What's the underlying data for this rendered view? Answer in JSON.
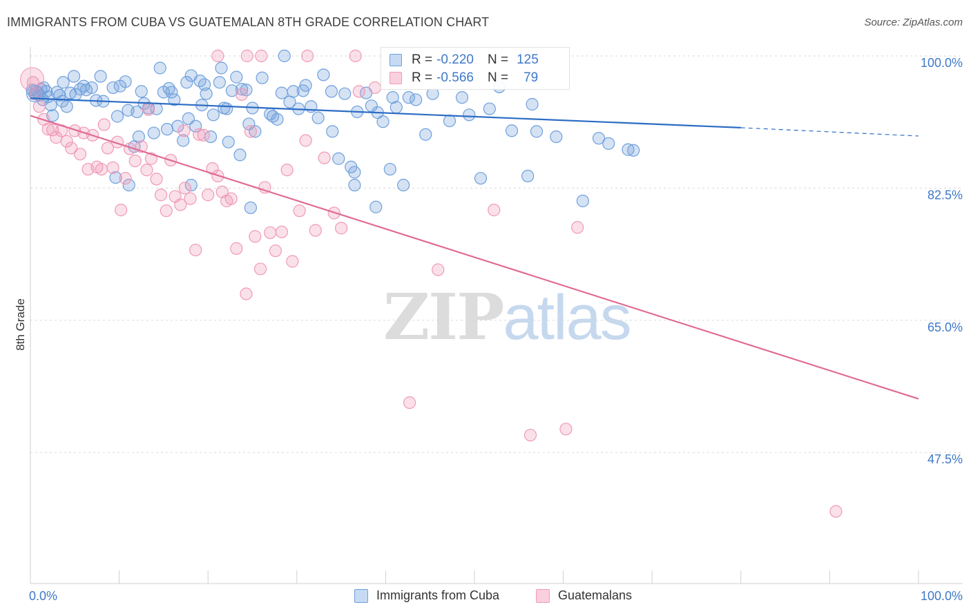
{
  "title": "IMMIGRANTS FROM CUBA VS GUATEMALAN 8TH GRADE CORRELATION CHART",
  "source": "Source: ZipAtlas.com",
  "watermark": {
    "zip": "ZIP",
    "atlas": "atlas"
  },
  "legend_top": {
    "rows": [
      {
        "r_label": "R =",
        "r_value": "-0.220",
        "n_label": "N =",
        "n_value": "125",
        "color": "#6fa0dc"
      },
      {
        "r_label": "R =",
        "r_value": "-0.566",
        "n_label": "N =",
        "n_value": "79",
        "color": "#f099b6"
      }
    ]
  },
  "legend_bottom": {
    "series1": "Immigrants from Cuba",
    "series2": "Guatemalans"
  },
  "chart_data": {
    "type": "scatter",
    "title": "IMMIGRANTS FROM CUBA VS GUATEMALAN 8TH GRADE CORRELATION CHART",
    "xlabel": "",
    "ylabel": "8th Grade",
    "xlim": [
      0,
      100
    ],
    "ylim": [
      30,
      100
    ],
    "x_tick_labels": [
      "0.0%",
      "100.0%"
    ],
    "y_ticks": [
      100,
      82.5,
      65,
      47.5
    ],
    "y_tick_labels": [
      "100.0%",
      "82.5%",
      "65.0%",
      "47.5%"
    ],
    "grid": true,
    "legend_position": "top-center",
    "series": [
      {
        "name": "Immigrants from Cuba",
        "color": "#6fa0dc",
        "trend": {
          "x0": 0,
          "y0": 94.4,
          "x1": 80,
          "y1": 90.5,
          "dashed_to_x": 100,
          "dashed_to_y": 89.4
        },
        "points": [
          [
            0.2,
            95.5
          ],
          [
            0.5,
            95.0
          ],
          [
            0.8,
            95.2
          ],
          [
            1.0,
            94.8
          ],
          [
            1.2,
            95.6
          ],
          [
            1.5,
            95.8
          ],
          [
            1.8,
            95.3
          ],
          [
            2.0,
            94.6
          ],
          [
            2.3,
            93.5
          ],
          [
            2.5,
            92.1
          ],
          [
            3.0,
            95.2
          ],
          [
            3.3,
            94.8
          ],
          [
            3.6,
            94.0
          ],
          [
            4.1,
            93.3
          ],
          [
            4.5,
            95.1
          ],
          [
            4.9,
            97.3
          ],
          [
            5.1,
            94.9
          ],
          [
            5.6,
            95.6
          ],
          [
            6.0,
            96.0
          ],
          [
            6.3,
            95.5
          ],
          [
            6.9,
            95.8
          ],
          [
            7.4,
            94.1
          ],
          [
            7.9,
            97.3
          ],
          [
            8.2,
            94.0
          ],
          [
            9.3,
            95.8
          ],
          [
            9.8,
            92.0
          ],
          [
            10.1,
            96.0
          ],
          [
            10.7,
            96.6
          ],
          [
            11.0,
            92.8
          ],
          [
            11.7,
            88.0
          ],
          [
            12.0,
            92.6
          ],
          [
            12.2,
            89.3
          ],
          [
            12.5,
            95.3
          ],
          [
            12.8,
            93.7
          ],
          [
            13.3,
            93.1
          ],
          [
            13.9,
            89.8
          ],
          [
            14.2,
            93.0
          ],
          [
            14.6,
            98.4
          ],
          [
            15.0,
            95.2
          ],
          [
            15.4,
            90.3
          ],
          [
            15.6,
            95.7
          ],
          [
            15.9,
            95.2
          ],
          [
            16.2,
            94.2
          ],
          [
            16.6,
            90.7
          ],
          [
            17.2,
            88.8
          ],
          [
            17.6,
            96.5
          ],
          [
            17.8,
            91.7
          ],
          [
            18.1,
            97.4
          ],
          [
            18.6,
            90.7
          ],
          [
            19.1,
            96.7
          ],
          [
            19.3,
            93.5
          ],
          [
            19.6,
            96.2
          ],
          [
            19.8,
            95.0
          ],
          [
            20.3,
            89.3
          ],
          [
            20.6,
            92.2
          ],
          [
            21.3,
            96.5
          ],
          [
            21.5,
            98.4
          ],
          [
            21.8,
            93.1
          ],
          [
            22.1,
            93.0
          ],
          [
            22.3,
            88.6
          ],
          [
            22.7,
            95.4
          ],
          [
            23.2,
            97.2
          ],
          [
            23.6,
            86.9
          ],
          [
            23.8,
            95.6
          ],
          [
            24.3,
            95.5
          ],
          [
            24.6,
            91.0
          ],
          [
            25.0,
            93.1
          ],
          [
            25.3,
            90.0
          ],
          [
            26.1,
            97.1
          ],
          [
            27.0,
            92.3
          ],
          [
            27.3,
            92.0
          ],
          [
            27.8,
            91.6
          ],
          [
            28.3,
            95.1
          ],
          [
            29.2,
            93.9
          ],
          [
            29.6,
            95.3
          ],
          [
            30.2,
            93.0
          ],
          [
            31.0,
            96.1
          ],
          [
            31.6,
            93.3
          ],
          [
            32.4,
            91.8
          ],
          [
            33.0,
            97.5
          ],
          [
            33.9,
            95.3
          ],
          [
            34.7,
            86.4
          ],
          [
            35.4,
            95.0
          ],
          [
            36.1,
            85.3
          ],
          [
            36.8,
            92.6
          ],
          [
            37.8,
            95.1
          ],
          [
            38.4,
            93.4
          ],
          [
            39.1,
            92.5
          ],
          [
            39.7,
            91.3
          ],
          [
            40.8,
            94.5
          ],
          [
            41.2,
            93.2
          ],
          [
            42.6,
            94.5
          ],
          [
            43.4,
            94.2
          ],
          [
            44.5,
            89.6
          ],
          [
            45.3,
            95.0
          ],
          [
            47.2,
            91.4
          ],
          [
            48.6,
            94.5
          ],
          [
            49.4,
            92.2
          ],
          [
            51.7,
            93.0
          ],
          [
            54.2,
            90.1
          ],
          [
            56.5,
            93.6
          ],
          [
            59.2,
            89.3
          ],
          [
            65.1,
            88.4
          ],
          [
            67.3,
            87.6
          ],
          [
            67.9,
            87.5
          ],
          [
            64.0,
            89.1
          ],
          [
            28.6,
            100.0
          ],
          [
            30.7,
            95.4
          ],
          [
            34.0,
            90.0
          ],
          [
            36.5,
            82.9
          ],
          [
            11.1,
            82.9
          ],
          [
            9.6,
            83.9
          ],
          [
            18.1,
            82.9
          ],
          [
            24.8,
            79.9
          ],
          [
            36.5,
            84.6
          ],
          [
            38.9,
            80.0
          ],
          [
            40.5,
            85.0
          ],
          [
            42.0,
            82.9
          ],
          [
            56.0,
            84.1
          ],
          [
            50.7,
            83.8
          ],
          [
            52.8,
            95.9
          ],
          [
            62.2,
            80.8
          ],
          [
            57.0,
            90.0
          ],
          [
            1.4,
            94.2
          ],
          [
            3.7,
            96.5
          ]
        ]
      },
      {
        "name": "Guatemalans",
        "color": "#f099b6",
        "trend": {
          "x0": 0,
          "y0": 92.1,
          "x1": 100,
          "y1": 54.6
        },
        "points": [
          [
            0.3,
            96.5
          ],
          [
            0.6,
            95.0
          ],
          [
            1.0,
            93.3
          ],
          [
            1.5,
            91.6
          ],
          [
            2.0,
            90.3
          ],
          [
            2.5,
            90.2
          ],
          [
            2.9,
            89.2
          ],
          [
            3.5,
            90.1
          ],
          [
            4.1,
            88.7
          ],
          [
            4.6,
            87.8
          ],
          [
            5.0,
            90.1
          ],
          [
            5.6,
            87.0
          ],
          [
            6.0,
            89.8
          ],
          [
            6.5,
            85.0
          ],
          [
            7.0,
            89.5
          ],
          [
            7.5,
            85.3
          ],
          [
            8.0,
            85.0
          ],
          [
            8.7,
            87.8
          ],
          [
            9.3,
            85.2
          ],
          [
            9.8,
            88.6
          ],
          [
            10.2,
            79.6
          ],
          [
            10.7,
            83.8
          ],
          [
            11.2,
            87.7
          ],
          [
            11.8,
            86.1
          ],
          [
            12.5,
            88.0
          ],
          [
            13.1,
            84.9
          ],
          [
            13.6,
            86.4
          ],
          [
            14.2,
            83.7
          ],
          [
            14.7,
            81.6
          ],
          [
            15.3,
            79.5
          ],
          [
            15.8,
            86.2
          ],
          [
            16.3,
            81.4
          ],
          [
            16.9,
            80.3
          ],
          [
            17.4,
            82.5
          ],
          [
            18.0,
            81.1
          ],
          [
            18.6,
            74.3
          ],
          [
            19.0,
            89.6
          ],
          [
            19.5,
            89.5
          ],
          [
            20.0,
            81.6
          ],
          [
            20.5,
            85.1
          ],
          [
            21.1,
            84.1
          ],
          [
            21.6,
            82.0
          ],
          [
            22.1,
            80.8
          ],
          [
            22.6,
            81.1
          ],
          [
            23.2,
            74.5
          ],
          [
            23.8,
            94.9
          ],
          [
            24.3,
            68.5
          ],
          [
            24.8,
            90.0
          ],
          [
            25.3,
            76.1
          ],
          [
            25.9,
            71.8
          ],
          [
            26.4,
            82.6
          ],
          [
            27.0,
            76.6
          ],
          [
            27.6,
            74.2
          ],
          [
            28.3,
            76.7
          ],
          [
            28.9,
            84.9
          ],
          [
            29.5,
            72.8
          ],
          [
            30.3,
            79.5
          ],
          [
            31.0,
            88.8
          ],
          [
            32.1,
            76.9
          ],
          [
            33.1,
            86.5
          ],
          [
            34.2,
            79.2
          ],
          [
            35.0,
            77.2
          ],
          [
            37.0,
            95.3
          ],
          [
            38.8,
            95.8
          ],
          [
            42.7,
            54.1
          ],
          [
            45.9,
            71.7
          ],
          [
            52.2,
            79.6
          ],
          [
            56.3,
            49.8
          ],
          [
            60.3,
            50.6
          ],
          [
            61.6,
            77.3
          ],
          [
            90.7,
            39.7
          ],
          [
            21.1,
            100.0
          ],
          [
            24.4,
            100.0
          ],
          [
            26.0,
            100.0
          ],
          [
            31.2,
            100.0
          ],
          [
            36.6,
            100.0
          ],
          [
            13.3,
            92.9
          ],
          [
            8.3,
            90.9
          ],
          [
            17.3,
            90.1
          ]
        ]
      }
    ]
  }
}
